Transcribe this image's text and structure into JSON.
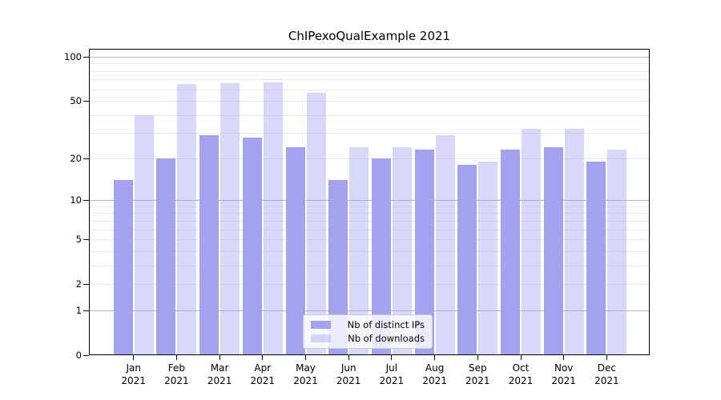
{
  "chart_data": {
    "type": "bar",
    "title": "ChIPexoQualExample 2021",
    "categories": [
      "Jan",
      "Feb",
      "Mar",
      "Apr",
      "May",
      "Jun",
      "Jul",
      "Aug",
      "Sep",
      "Oct",
      "Nov",
      "Dec"
    ],
    "year_label": "2021",
    "series": [
      {
        "name": "Nb of distinct IPs",
        "color": "#A2A2EE",
        "opacity": 1,
        "values": [
          14,
          20,
          29,
          28,
          24,
          14,
          20,
          23,
          18,
          23,
          24,
          19
        ]
      },
      {
        "name": "Nb of downloads",
        "color": "#A2A2EE",
        "opacity": 0.42,
        "display_color": "#D8D8F8",
        "values": [
          40,
          65,
          66,
          67,
          57,
          24,
          24,
          29,
          19,
          32,
          32,
          23
        ]
      }
    ],
    "xlabel": "",
    "ylabel": "",
    "yscale": "log1p",
    "ylim": [
      0,
      113
    ],
    "yticks": [
      0,
      1,
      2,
      5,
      10,
      20,
      50,
      100
    ],
    "grid_major": [
      1,
      10,
      100
    ],
    "grid_minor": [
      2,
      3,
      4,
      5,
      6,
      7,
      8,
      9,
      20,
      30,
      40,
      50,
      60,
      70,
      80,
      90
    ],
    "grid": "on",
    "legend_position": "lower center"
  },
  "colors": {
    "background": "#FFFFFF",
    "spine": "#000000",
    "grid_major": "#B4B4B4",
    "grid_minor": "#EAEAEA",
    "text": "#000000",
    "legend_border": "#CCCCCC"
  }
}
